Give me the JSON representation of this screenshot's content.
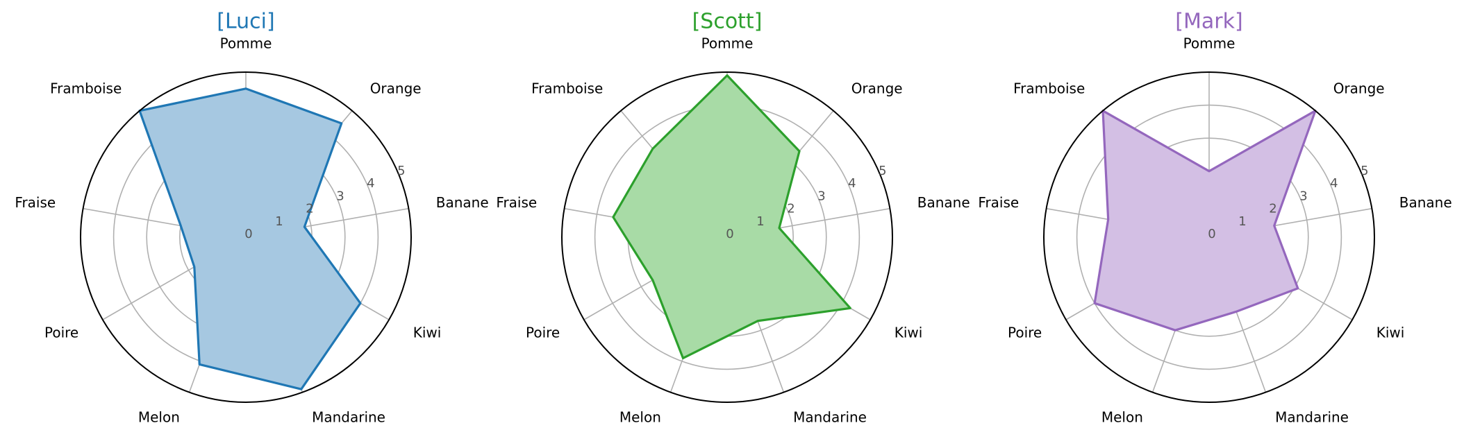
{
  "figure": {
    "background": "#ffffff",
    "grid_color": "#b0b0b0",
    "tick_color": "#555555"
  },
  "chart_data": [
    {
      "type": "radar",
      "title": "[Luci]",
      "color": "#1f77b4",
      "fill_color": "#a6c8e1",
      "categories": [
        "Pomme",
        "Orange",
        "Banane",
        "Kiwi",
        "Mandarine",
        "Melon",
        "Poire",
        "Fraise",
        "Framboise"
      ],
      "rticks": [
        "0",
        "1",
        "2",
        "3",
        "4",
        "5"
      ],
      "rlim": [
        0,
        5
      ],
      "values": [
        4.5,
        4.5,
        1.8,
        4.0,
        4.9,
        4.1,
        1.8,
        2.0,
        5.0
      ],
      "grid": true
    },
    {
      "type": "radar",
      "title": "[Scott]",
      "color": "#2ca02c",
      "fill_color": "#a8dba6",
      "categories": [
        "Pomme",
        "Orange",
        "Banane",
        "Kiwi",
        "Mandarine",
        "Melon",
        "Poire",
        "Fraise",
        "Framboise"
      ],
      "rticks": [
        "0",
        "1",
        "2",
        "3",
        "4",
        "5"
      ],
      "rlim": [
        0,
        5
      ],
      "values": [
        4.9,
        3.4,
        1.6,
        4.3,
        2.7,
        3.9,
        2.6,
        3.5,
        3.5
      ],
      "grid": true
    },
    {
      "type": "radar",
      "title": "[Mark]",
      "color": "#9467bd",
      "fill_color": "#d3bfe4",
      "categories": [
        "Pomme",
        "Orange",
        "Banane",
        "Kiwi",
        "Mandarine",
        "Melon",
        "Poire",
        "Fraise",
        "Framboise"
      ],
      "rticks": [
        "0",
        "1",
        "2",
        "3",
        "4",
        "5"
      ],
      "rlim": [
        0,
        5
      ],
      "values": [
        2.0,
        5.0,
        2.0,
        3.1,
        2.4,
        3.0,
        4.0,
        3.1,
        5.0
      ],
      "grid": true
    }
  ]
}
